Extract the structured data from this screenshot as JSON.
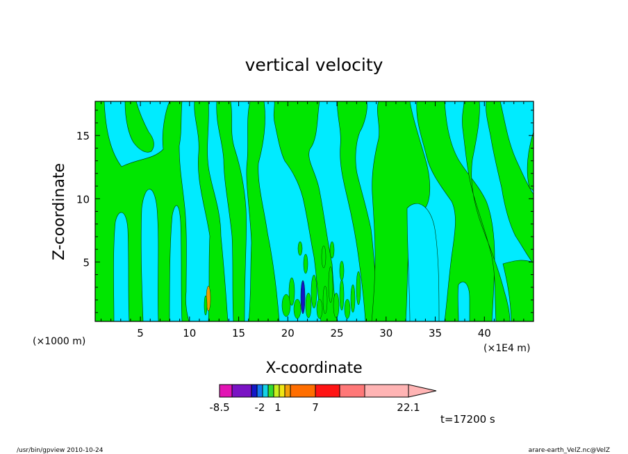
{
  "chart_data": {
    "type": "heatmap",
    "title": "vertical velocity",
    "xlabel": "X-coordinate",
    "ylabel": "Z-coordinate",
    "x_unit_left": "(×1000 m)",
    "x_unit_right": "(×1E4 m)",
    "x_ticks": [
      5,
      10,
      15,
      20,
      25,
      30,
      35,
      40
    ],
    "y_ticks": [
      5,
      10,
      15
    ],
    "xlim": [
      0.4,
      45
    ],
    "ylim": [
      0.3,
      17.7
    ],
    "time_label": "t=17200 s",
    "colorbar": {
      "tick_labels": [
        "-8.5",
        "-2",
        "1",
        "7",
        "22.1"
      ],
      "colors": [
        "#e214b4",
        "#7a13c4",
        "#1418c8",
        "#1478f0",
        "#14d2e6",
        "#32dc32",
        "#c8f01e",
        "#f0e614",
        "#f5a00a",
        "#ff6e00",
        "#ff1414",
        "#ff7878",
        "#ffb4b4"
      ]
    },
    "fill_colors": {
      "background": "#00ebff",
      "positive": "#00e600",
      "strong_negative": "#1414c8",
      "strong_positive": "#f0a000"
    }
  },
  "footer": {
    "left": "/usr/bin/gpview   2010-10-24",
    "right": "arare-earth_VelZ.nc@VelZ"
  }
}
